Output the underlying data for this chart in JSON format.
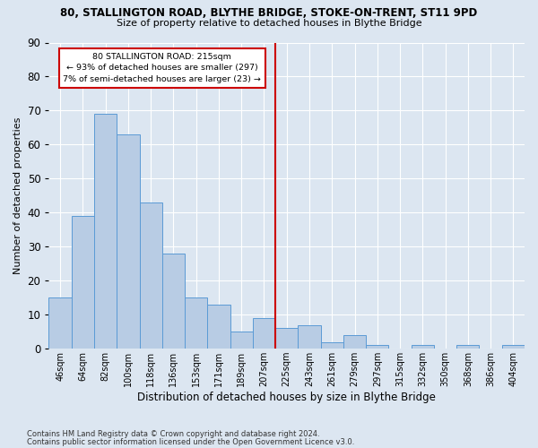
{
  "title": "80, STALLINGTON ROAD, BLYTHE BRIDGE, STOKE-ON-TRENT, ST11 9PD",
  "subtitle": "Size of property relative to detached houses in Blythe Bridge",
  "xlabel": "Distribution of detached houses by size in Blythe Bridge",
  "ylabel": "Number of detached properties",
  "footnote1": "Contains HM Land Registry data © Crown copyright and database right 2024.",
  "footnote2": "Contains public sector information licensed under the Open Government Licence v3.0.",
  "bar_labels": [
    "46sqm",
    "64sqm",
    "82sqm",
    "100sqm",
    "118sqm",
    "136sqm",
    "153sqm",
    "171sqm",
    "189sqm",
    "207sqm",
    "225sqm",
    "243sqm",
    "261sqm",
    "279sqm",
    "297sqm",
    "315sqm",
    "332sqm",
    "350sqm",
    "368sqm",
    "386sqm",
    "404sqm"
  ],
  "bar_values": [
    15,
    39,
    69,
    63,
    43,
    28,
    15,
    13,
    5,
    9,
    6,
    7,
    2,
    4,
    1,
    0,
    1,
    0,
    1,
    0,
    1
  ],
  "bar_color": "#b8cce4",
  "bar_edge_color": "#5b9bd5",
  "bg_color": "#dce6f1",
  "grid_color": "#ffffff",
  "vline_color": "#cc0000",
  "annotation_line1": "80 STALLINGTON ROAD: 215sqm",
  "annotation_line2": "← 93% of detached houses are smaller (297)",
  "annotation_line3": "7% of semi-detached houses are larger (23) →",
  "annotation_box_color": "#ffffff",
  "annotation_box_edge": "#cc0000",
  "ylim": [
    0,
    90
  ],
  "yticks": [
    0,
    10,
    20,
    30,
    40,
    50,
    60,
    70,
    80,
    90
  ],
  "vline_bar_index": 9,
  "n_bars": 21
}
